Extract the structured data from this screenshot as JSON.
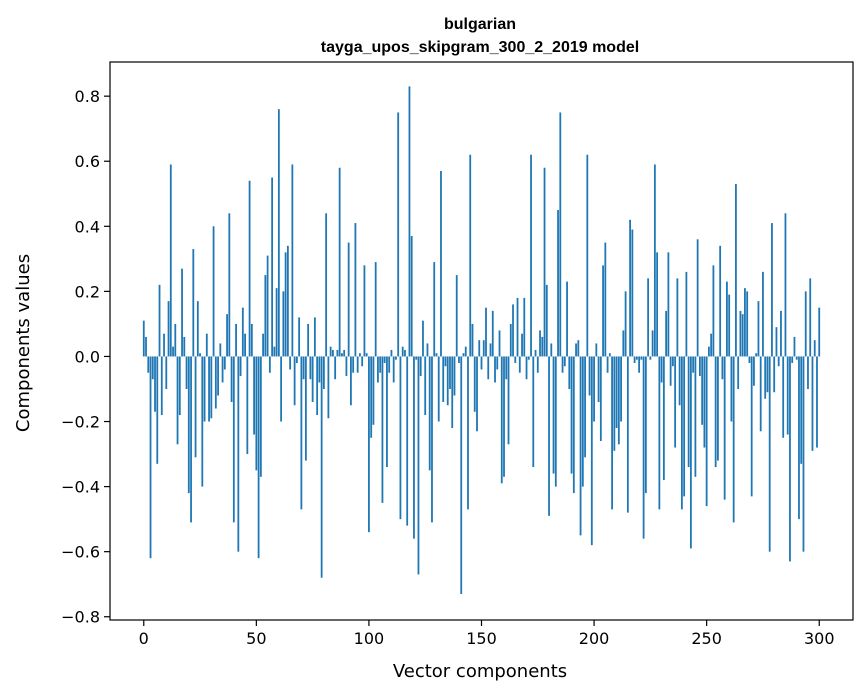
{
  "chart_data": {
    "type": "bar",
    "title": "bulgarian",
    "subtitle": "tayga_upos_skipgram_300_2_2019 model",
    "xlabel": "Vector components",
    "ylabel": "Components values",
    "xlim": [
      -15,
      315
    ],
    "ylim": [
      -0.81,
      0.905
    ],
    "x_ticks": [
      0,
      50,
      100,
      150,
      200,
      250,
      300
    ],
    "x_tick_labels": [
      "0",
      "50",
      "100",
      "150",
      "200",
      "250",
      "300"
    ],
    "y_ticks": [
      -0.8,
      -0.6,
      -0.4,
      -0.2,
      0.0,
      0.2,
      0.4,
      0.6,
      0.8
    ],
    "y_tick_labels": [
      "−0.8",
      "−0.6",
      "−0.4",
      "−0.2",
      "0.0",
      "0.2",
      "0.4",
      "0.6",
      "0.8"
    ],
    "bar_color": "#1f77b4",
    "grid": false,
    "legend": "none",
    "values": [
      0.11,
      0.06,
      -0.05,
      -0.62,
      -0.07,
      -0.17,
      -0.33,
      0.22,
      -0.18,
      0.07,
      -0.1,
      0.17,
      0.59,
      0.03,
      0.1,
      -0.27,
      -0.18,
      0.27,
      0.06,
      -0.1,
      -0.42,
      -0.51,
      0.33,
      -0.31,
      0.17,
      0.01,
      -0.4,
      -0.2,
      0.07,
      -0.2,
      -0.19,
      0.4,
      -0.16,
      -0.12,
      0.04,
      -0.08,
      -0.04,
      0.13,
      0.44,
      -0.14,
      -0.51,
      0.1,
      -0.6,
      -0.06,
      0.15,
      0.07,
      -0.3,
      0.54,
      0.1,
      -0.24,
      -0.35,
      -0.62,
      -0.37,
      0.07,
      0.25,
      0.31,
      -0.05,
      0.55,
      0.03,
      0.21,
      0.76,
      -0.2,
      0.2,
      0.32,
      0.34,
      -0.04,
      0.59,
      -0.15,
      -0.02,
      0.12,
      -0.47,
      -0.07,
      -0.32,
      0.1,
      -0.07,
      -0.14,
      0.12,
      -0.18,
      -0.08,
      -0.68,
      -0.1,
      0.44,
      -0.19,
      0.03,
      0.02,
      -0.07,
      0.02,
      0.58,
      0.01,
      0.02,
      -0.06,
      0.35,
      -0.15,
      -0.05,
      0.41,
      -0.05,
      0.01,
      -0.03,
      0.28,
      0.01,
      -0.54,
      -0.25,
      -0.21,
      0.29,
      -0.08,
      -0.05,
      -0.45,
      -0.02,
      -0.34,
      -0.05,
      0.02,
      -0.08,
      -0.01,
      0.75,
      -0.5,
      0.03,
      0.02,
      -0.52,
      0.83,
      0.37,
      -0.56,
      -0.01,
      -0.67,
      -0.06,
      0.11,
      -0.18,
      0.04,
      -0.35,
      -0.51,
      0.29,
      0.01,
      -0.2,
      0.57,
      -0.14,
      -0.03,
      -0.15,
      -0.1,
      -0.22,
      -0.12,
      0.25,
      -0.02,
      -0.73,
      0.01,
      0.03,
      -0.47,
      0.62,
      0.1,
      -0.17,
      -0.23,
      0.05,
      -0.04,
      0.05,
      0.15,
      -0.07,
      0.04,
      0.14,
      -0.08,
      -0.04,
      0.08,
      -0.39,
      -0.37,
      -0.07,
      -0.27,
      0.1,
      0.16,
      -0.02,
      0.18,
      -0.05,
      0.07,
      0.18,
      -0.07,
      -0.01,
      0.62,
      -0.34,
      0.02,
      -0.05,
      0.08,
      0.06,
      0.58,
      0.22,
      -0.49,
      0.04,
      -0.36,
      -0.4,
      0.45,
      0.75,
      -0.05,
      -0.03,
      0.23,
      -0.1,
      -0.36,
      -0.42,
      0.04,
      0.05,
      -0.55,
      -0.4,
      -0.31,
      0.62,
      -0.12,
      -0.58,
      -0.2,
      0.04,
      -0.14,
      -0.26,
      0.28,
      0.35,
      -0.05,
      0.01,
      -0.47,
      -0.29,
      -0.22,
      -0.27,
      -0.2,
      0.08,
      0.2,
      -0.48,
      0.42,
      0.39,
      -0.02,
      -0.01,
      -0.05,
      -0.01,
      -0.56,
      -0.42,
      0.24,
      -0.01,
      0.08,
      0.59,
      0.32,
      -0.47,
      -0.08,
      -0.38,
      0.14,
      0.32,
      -0.09,
      -0.03,
      -0.28,
      0.24,
      -0.15,
      -0.47,
      -0.43,
      0.26,
      -0.34,
      -0.59,
      -0.05,
      -0.37,
      0.36,
      -0.06,
      -0.21,
      -0.28,
      -0.46,
      0.03,
      0.07,
      0.28,
      -0.34,
      -0.32,
      0.34,
      -0.07,
      -0.44,
      0.23,
      0.19,
      -0.2,
      -0.51,
      0.53,
      -0.1,
      0.14,
      0.13,
      0.21,
      0.2,
      -0.02,
      -0.43,
      -0.09,
      0.01,
      0.17,
      -0.23,
      0.26,
      -0.13,
      -0.11,
      -0.6,
      0.41,
      -0.11,
      0.09,
      -0.03,
      0.14,
      -0.25,
      0.44,
      -0.24,
      -0.63,
      -0.02,
      0.06,
      -0.01,
      -0.5,
      -0.33,
      -0.6,
      0.2,
      -0.1,
      0.24,
      -0.29,
      0.05,
      -0.28,
      0.15
    ]
  }
}
